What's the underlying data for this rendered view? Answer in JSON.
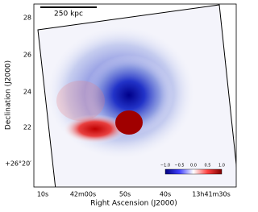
{
  "scale_bar": {
    "label": "250 kpc"
  },
  "axes": {
    "x_label": "Right Ascension (J2000)",
    "y_label": "Declination (J2000)",
    "x_tick_labels": [
      "10s",
      "42m00s",
      "50s",
      "40s",
      "13h41m30s"
    ],
    "y_tick_labels": [
      "28",
      "26",
      "24",
      "22",
      "+26°20′"
    ]
  },
  "colorbar": {
    "tick_labels": [
      "−1.0",
      "−0.5",
      "0.0",
      "0.5",
      "1.0"
    ]
  }
}
